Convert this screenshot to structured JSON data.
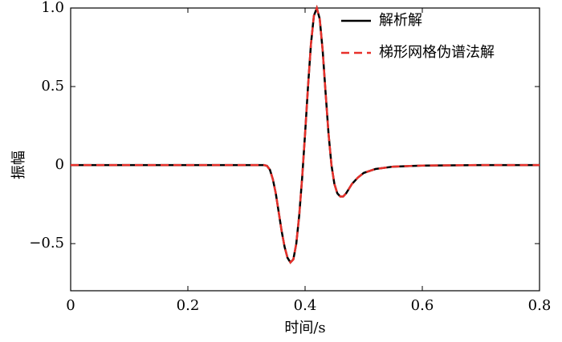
{
  "chart_data": {
    "type": "line",
    "xlabel": "时间/s",
    "ylabel": "振幅",
    "x": [
      0,
      0.1,
      0.2,
      0.3,
      0.33,
      0.335,
      0.34,
      0.345,
      0.35,
      0.355,
      0.36,
      0.365,
      0.37,
      0.375,
      0.38,
      0.385,
      0.39,
      0.395,
      0.4,
      0.405,
      0.41,
      0.415,
      0.42,
      0.425,
      0.43,
      0.435,
      0.44,
      0.445,
      0.45,
      0.455,
      0.46,
      0.465,
      0.47,
      0.475,
      0.48,
      0.49,
      0.5,
      0.52,
      0.55,
      0.6,
      0.7,
      0.8
    ],
    "series": [
      {
        "name": "解析解",
        "color": "#000000",
        "dash": false,
        "values": [
          0,
          0,
          0,
          0,
          0,
          -0.005,
          -0.03,
          -0.09,
          -0.18,
          -0.3,
          -0.42,
          -0.52,
          -0.59,
          -0.62,
          -0.6,
          -0.5,
          -0.32,
          -0.08,
          0.2,
          0.5,
          0.77,
          0.95,
          1.0,
          0.93,
          0.73,
          0.46,
          0.2,
          0.0,
          -0.12,
          -0.18,
          -0.2,
          -0.2,
          -0.18,
          -0.15,
          -0.12,
          -0.08,
          -0.05,
          -0.025,
          -0.01,
          -0.003,
          0,
          0
        ]
      },
      {
        "name": "梯形网格伪谱法解",
        "color": "#e8302a",
        "dash": true,
        "values": [
          0,
          0,
          0,
          0,
          0,
          -0.005,
          -0.03,
          -0.09,
          -0.18,
          -0.3,
          -0.42,
          -0.52,
          -0.59,
          -0.62,
          -0.6,
          -0.5,
          -0.32,
          -0.08,
          0.2,
          0.5,
          0.77,
          0.95,
          1.0,
          0.93,
          0.73,
          0.46,
          0.2,
          0.0,
          -0.12,
          -0.18,
          -0.2,
          -0.2,
          -0.18,
          -0.15,
          -0.12,
          -0.08,
          -0.05,
          -0.025,
          -0.01,
          -0.003,
          0,
          0
        ]
      }
    ],
    "xlim": [
      0,
      0.8
    ],
    "xticks": [
      0,
      0.2,
      0.4,
      0.6,
      0.8
    ],
    "ylim": [
      -0.8,
      1.0
    ],
    "yticks": [
      {
        "value": -0.5,
        "label": "−0.5"
      },
      0,
      {
        "value": 0.5,
        "label": "0.5"
      },
      {
        "value": 1.0,
        "label": "1.0"
      }
    ],
    "legend": "top-right",
    "grid": false
  }
}
